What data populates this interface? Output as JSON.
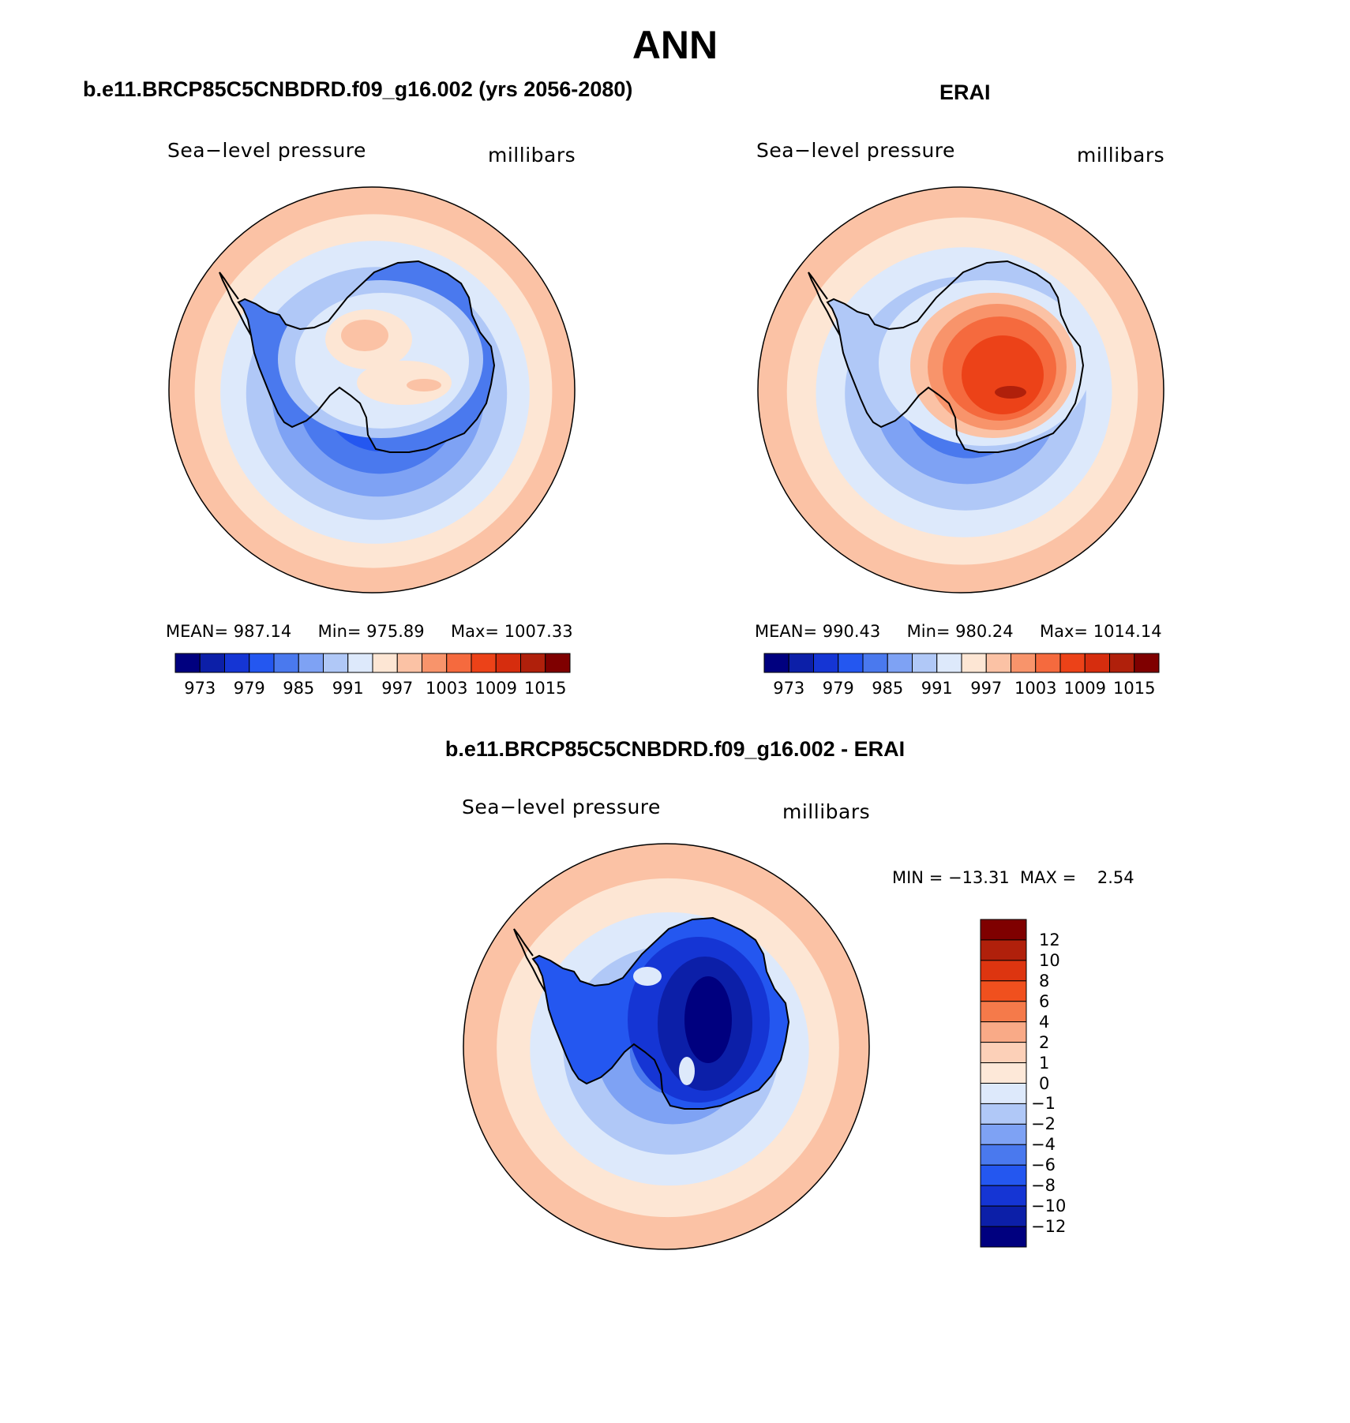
{
  "figure": {
    "main_title": "ANN"
  },
  "panels": [
    {
      "title": "b.e11.BRCP85C5CNBDRD.f09_g16.002 (yrs 2056-2080)",
      "left_label": "Sea−level pressure",
      "right_label": "millibars",
      "stats": {
        "mean_label": "MEAN=",
        "mean": "987.14",
        "min_label": "Min=",
        "min": "975.89",
        "max_label": "Max=",
        "max": "1007.33"
      }
    },
    {
      "title": "ERAI",
      "left_label": "Sea−level pressure",
      "right_label": "millibars",
      "stats": {
        "mean_label": "MEAN=",
        "mean": "990.43",
        "min_label": "Min=",
        "min": "980.24",
        "max_label": "Max=",
        "max": "1014.14"
      }
    },
    {
      "title": "b.e11.BRCP85C5CNBDRD.f09_g16.002 - ERAI",
      "left_label": "Sea−level pressure",
      "right_label": "millibars",
      "stats_text": "MIN = −13.31  MAX =    2.54"
    }
  ],
  "colorbars": {
    "absolute": {
      "colors": [
        "#00007f",
        "#0c1fa8",
        "#1535d4",
        "#2457f0",
        "#4a79ee",
        "#7ea2f4",
        "#b0c8f7",
        "#dde9fb",
        "#fde6d4",
        "#fbc2a5",
        "#f8946b",
        "#f56a3e",
        "#ec4218",
        "#d62d0e",
        "#b0200b",
        "#7f0000"
      ],
      "tick_labels": [
        "973",
        "979",
        "985",
        "991",
        "997",
        "1003",
        "1009",
        "1015"
      ]
    },
    "difference": {
      "colors_top_to_bottom": [
        "#7f0000",
        "#b0200b",
        "#dd3510",
        "#f0501e",
        "#f57a4a",
        "#f9aa87",
        "#fcd0b8",
        "#fde8d8",
        "#dde9fb",
        "#b0c8f7",
        "#7ea2f4",
        "#4a79ee",
        "#2457f0",
        "#1535d4",
        "#0c1fa8",
        "#00007f"
      ],
      "tick_labels": [
        "12",
        "10",
        "8",
        "6",
        "4",
        "2",
        "1",
        "0",
        "−1",
        "−2",
        "−4",
        "−6",
        "−8",
        "−10",
        "−12"
      ]
    }
  },
  "maps": {
    "model": {
      "rings": [
        "#fbc2a5",
        "#fde6d4",
        "#dde9fb",
        "#b0c8f7",
        "#7ea2f4",
        "#4a79ee",
        "#2457f0",
        "#1535d4"
      ],
      "interior": [
        "#4a79ee",
        "#b0c8f7",
        "#dde9fb",
        "#fde6d4",
        "#fbc2a5"
      ]
    },
    "obs": {
      "rings": [
        "#fbc2a5",
        "#fde6d4",
        "#dde9fb",
        "#b0c8f7",
        "#7ea2f4",
        "#4a79ee",
        "#2457f0"
      ],
      "interior": [
        "#b0c8f7",
        "#dde9fb",
        "#fbc2a5",
        "#f8946b",
        "#f56a3e",
        "#ec4218",
        "#b0200b"
      ]
    },
    "diff": {
      "rings": [
        "#fbc2a5",
        "#fde6d4",
        "#dde9fb",
        "#b0c8f7",
        "#7ea2f4",
        "#4a79ee"
      ],
      "interior": [
        "#2457f0",
        "#1535d4",
        "#0c1fa8",
        "#00007f"
      ]
    }
  }
}
